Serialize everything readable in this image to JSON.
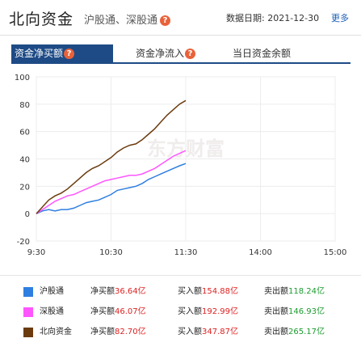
{
  "header": {
    "title": "北向资金",
    "subtitle": "沪股通、深股通",
    "date_label": "数据日期:",
    "date_value": "2021-12-30",
    "more_label": "更多"
  },
  "tabs": [
    {
      "label": "资金净买额",
      "active": true,
      "has_help": true
    },
    {
      "label": "资金净流入",
      "active": false,
      "has_help": true
    },
    {
      "label": "当日资金余额",
      "active": false,
      "has_help": false
    }
  ],
  "help_glyph": "?",
  "watermark": "东方财富",
  "chart_data": {
    "type": "line",
    "x_ticks": [
      "9:30",
      "10:30",
      "11:30",
      "14:00",
      "15:00"
    ],
    "y_ticks": [
      100,
      80,
      60,
      40,
      20,
      0,
      -20
    ],
    "ylim": [
      -20,
      100
    ],
    "grid": true,
    "series": [
      {
        "name": "沪股通",
        "color": "#2f7fe0",
        "x": [
          0,
          5,
          10,
          15,
          20,
          25,
          30,
          35,
          40,
          45,
          50,
          55,
          60,
          65,
          70,
          75,
          80,
          85,
          90,
          95,
          100,
          105,
          110,
          115,
          120
        ],
        "values": [
          0,
          2,
          3,
          2,
          3,
          3,
          4,
          6,
          8,
          9,
          10,
          12,
          14,
          17,
          18,
          19,
          20,
          22,
          25,
          27,
          29,
          31,
          33,
          35,
          36.64
        ]
      },
      {
        "name": "深股通",
        "color": "#ff55ff",
        "x": [
          0,
          5,
          10,
          15,
          20,
          25,
          30,
          35,
          40,
          45,
          50,
          55,
          60,
          65,
          70,
          75,
          80,
          85,
          90,
          95,
          100,
          105,
          110,
          115,
          120
        ],
        "values": [
          0,
          3,
          6,
          9,
          11,
          13,
          14,
          16,
          18,
          20,
          22,
          24,
          25,
          26,
          27,
          28,
          28,
          29,
          31,
          33,
          36,
          39,
          42,
          44,
          46.07
        ]
      },
      {
        "name": "北向资金",
        "color": "#6b3b0f",
        "x": [
          0,
          5,
          10,
          15,
          20,
          25,
          30,
          35,
          40,
          45,
          50,
          55,
          60,
          65,
          70,
          75,
          80,
          85,
          90,
          95,
          100,
          105,
          110,
          115,
          120
        ],
        "values": [
          0,
          5,
          10,
          13,
          15,
          18,
          22,
          26,
          30,
          33,
          35,
          38,
          41,
          45,
          48,
          50,
          51,
          54,
          58,
          62,
          67,
          72,
          76,
          80,
          82.7
        ]
      }
    ]
  },
  "legend": [
    {
      "name": "沪股通",
      "color": "#2f7fe0",
      "net_label": "净买额",
      "net": "36.64亿",
      "buy_label": "买入额",
      "buy": "154.88亿",
      "sell_label": "卖出额",
      "sell": "118.24亿"
    },
    {
      "name": "深股通",
      "color": "#ff55ff",
      "net_label": "净买额",
      "net": "46.07亿",
      "buy_label": "买入额",
      "buy": "192.99亿",
      "sell_label": "卖出额",
      "sell": "146.93亿"
    },
    {
      "name": "北向资金",
      "color": "#6b3b0f",
      "net_label": "净买额",
      "net": "82.70亿",
      "buy_label": "买入额",
      "buy": "347.87亿",
      "sell_label": "卖出额",
      "sell": "265.17亿"
    }
  ]
}
